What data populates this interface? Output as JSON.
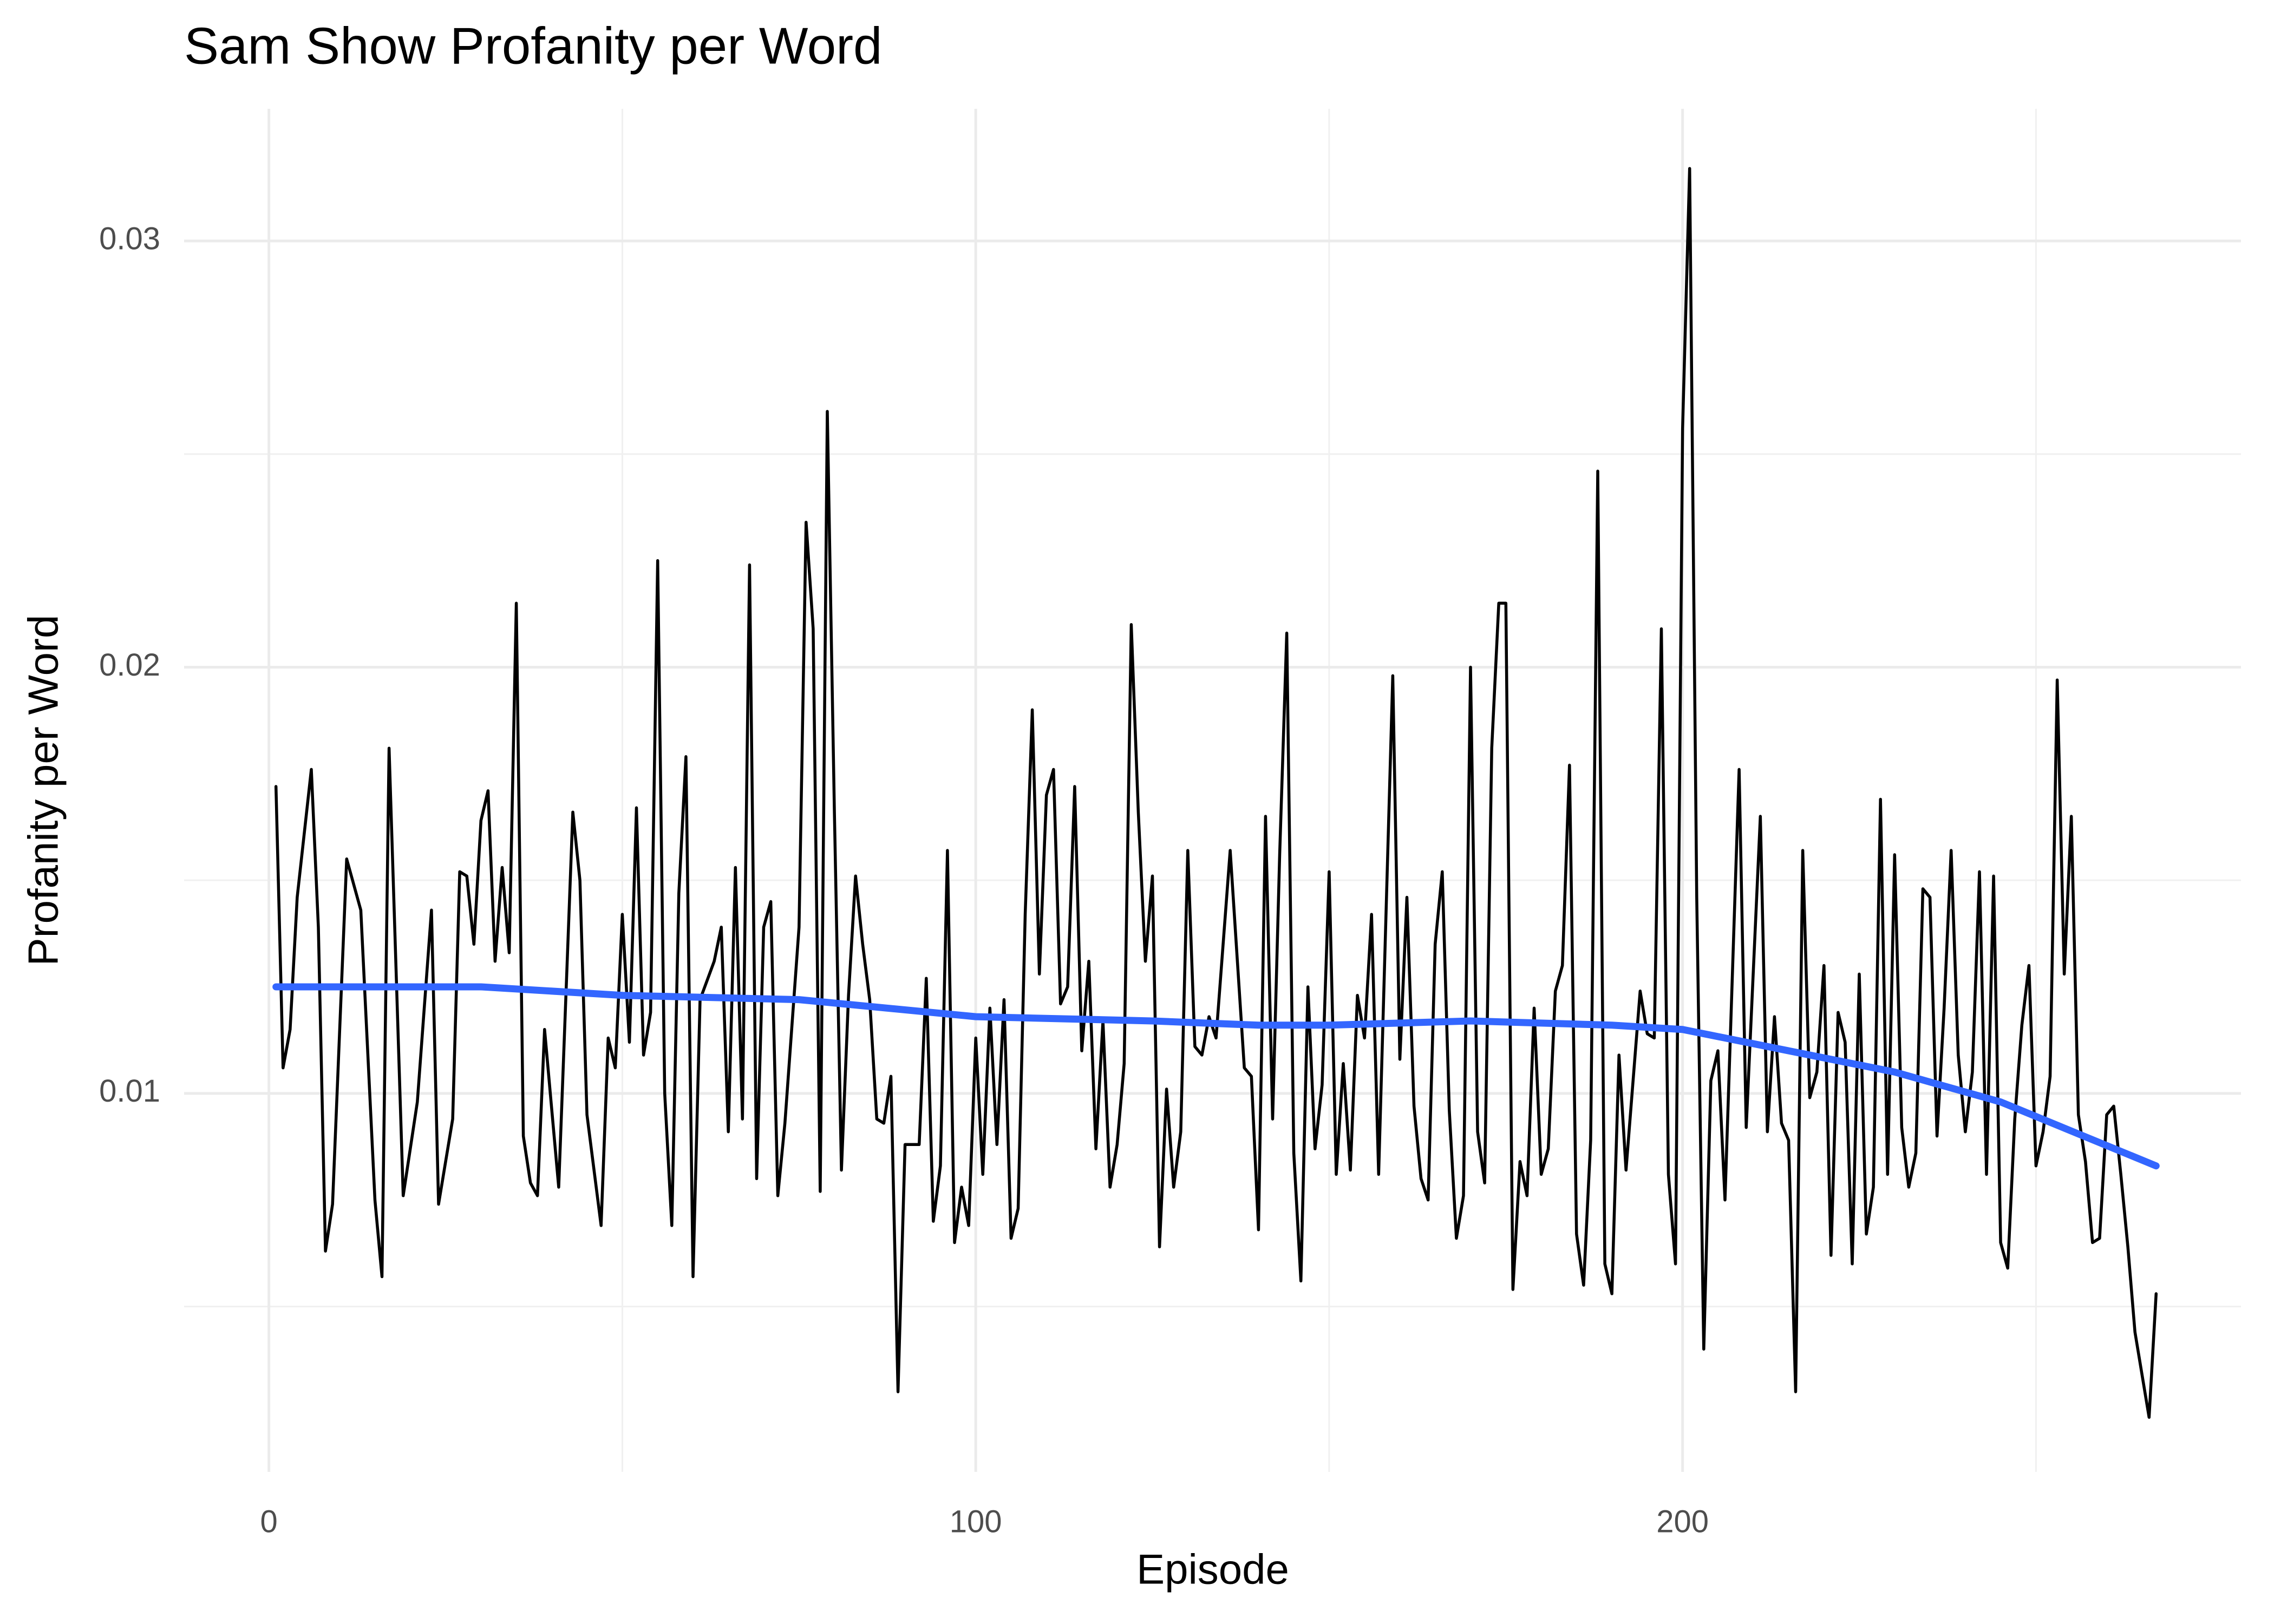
{
  "chart_data": {
    "type": "line",
    "title": "Sam Show Profanity per Word",
    "x_label": "Episode",
    "y_label": "Profanity per Word",
    "xlim": [
      -12,
      279
    ],
    "ylim": [
      0.00112,
      0.0331
    ],
    "xticks": [
      0,
      100,
      200
    ],
    "yticks": [
      0.01,
      0.02,
      0.03
    ],
    "xminor": [
      50,
      150,
      250
    ],
    "yminor": [
      0.005,
      0.015,
      0.025
    ],
    "grid": true,
    "series": [
      {
        "color": "#000000",
        "x": [
          1,
          2,
          3,
          4,
          6,
          7,
          8,
          9,
          11,
          13,
          15,
          16,
          17,
          19,
          21,
          23,
          24,
          26,
          27,
          28,
          29,
          30,
          31,
          32,
          33,
          34,
          35,
          36,
          37,
          38,
          39,
          41,
          43,
          44,
          45,
          47,
          48,
          49,
          50,
          51,
          52,
          53,
          54,
          55,
          56,
          57,
          58,
          59,
          60,
          61,
          63,
          64,
          65,
          66,
          67,
          68,
          69,
          70,
          71,
          72,
          73,
          75,
          76,
          77,
          78,
          79,
          80,
          81,
          82,
          83,
          84,
          85,
          86,
          87,
          88,
          89,
          90,
          92,
          93,
          94,
          95,
          96,
          97,
          98,
          99,
          100,
          101,
          102,
          103,
          104,
          105,
          106,
          107,
          108,
          109,
          110,
          111,
          112,
          113,
          114,
          115,
          116,
          117,
          118,
          119,
          120,
          121,
          122,
          123,
          124,
          125,
          126,
          127,
          128,
          129,
          130,
          131,
          132,
          133,
          134,
          136,
          138,
          139,
          140,
          141,
          142,
          143,
          144,
          145,
          146,
          147,
          148,
          149,
          150,
          151,
          152,
          153,
          154,
          155,
          156,
          157,
          159,
          160,
          161,
          162,
          163,
          164,
          165,
          166,
          167,
          168,
          169,
          170,
          171,
          172,
          173,
          174,
          175,
          176,
          177,
          178,
          179,
          180,
          181,
          182,
          183,
          184,
          185,
          186,
          187,
          188,
          189,
          190,
          191,
          192,
          194,
          195,
          196,
          197,
          198,
          199,
          200,
          201,
          202,
          203,
          204,
          205,
          206,
          208,
          209,
          211,
          212,
          213,
          214,
          215,
          216,
          217,
          218,
          219,
          220,
          221,
          222,
          223,
          224,
          225,
          226,
          227,
          228,
          229,
          230,
          231,
          232,
          233,
          234,
          235,
          236,
          237,
          238,
          239,
          240,
          241,
          242,
          243,
          244,
          245,
          246,
          247,
          248,
          249,
          250,
          251,
          252,
          253,
          254,
          255,
          256,
          257,
          258,
          259,
          260,
          261,
          262,
          263,
          264,
          266,
          267
        ],
        "values": [
          0.0172,
          0.0106,
          0.0115,
          0.0146,
          0.0176,
          0.0139,
          0.0063,
          0.0074,
          0.0155,
          0.0143,
          0.0075,
          0.0057,
          0.0181,
          0.0076,
          0.0098,
          0.0143,
          0.0074,
          0.0094,
          0.0152,
          0.0151,
          0.0135,
          0.0164,
          0.0171,
          0.0131,
          0.0153,
          0.0133,
          0.0215,
          0.009,
          0.0079,
          0.0076,
          0.0115,
          0.0078,
          0.0166,
          0.015,
          0.0095,
          0.0069,
          0.0113,
          0.0106,
          0.0142,
          0.0112,
          0.0167,
          0.0109,
          0.0119,
          0.0225,
          0.01,
          0.0069,
          0.0147,
          0.0179,
          0.0057,
          0.0122,
          0.0131,
          0.0139,
          0.0091,
          0.0153,
          0.0094,
          0.0224,
          0.008,
          0.0139,
          0.0145,
          0.0076,
          0.0093,
          0.0139,
          0.0234,
          0.0209,
          0.0077,
          0.026,
          0.0166,
          0.0082,
          0.0123,
          0.0151,
          0.0135,
          0.0122,
          0.0094,
          0.0093,
          0.0104,
          0.003,
          0.0088,
          0.0088,
          0.0127,
          0.007,
          0.0083,
          0.0157,
          0.0065,
          0.0078,
          0.0069,
          0.0113,
          0.0081,
          0.012,
          0.0088,
          0.0122,
          0.0066,
          0.0073,
          0.0142,
          0.019,
          0.0128,
          0.017,
          0.0176,
          0.0121,
          0.0125,
          0.0172,
          0.011,
          0.0131,
          0.0087,
          0.0117,
          0.0078,
          0.0088,
          0.0107,
          0.021,
          0.0166,
          0.0131,
          0.0151,
          0.0064,
          0.0101,
          0.0078,
          0.0091,
          0.0157,
          0.0111,
          0.0109,
          0.0118,
          0.0113,
          0.0157,
          0.0106,
          0.0104,
          0.0068,
          0.0165,
          0.0094,
          0.0156,
          0.0208,
          0.0086,
          0.0056,
          0.0125,
          0.0087,
          0.0102,
          0.0152,
          0.0081,
          0.0107,
          0.0082,
          0.0123,
          0.0113,
          0.0142,
          0.0081,
          0.0198,
          0.0108,
          0.0146,
          0.0097,
          0.008,
          0.0075,
          0.0135,
          0.0152,
          0.0096,
          0.0066,
          0.0076,
          0.02,
          0.0091,
          0.0079,
          0.0181,
          0.0215,
          0.0215,
          0.0054,
          0.0084,
          0.0076,
          0.012,
          0.0081,
          0.0087,
          0.0124,
          0.013,
          0.0177,
          0.0067,
          0.0055,
          0.0089,
          0.0246,
          0.006,
          0.0053,
          0.0109,
          0.0082,
          0.0124,
          0.0114,
          0.0113,
          0.0209,
          0.0081,
          0.006,
          0.0256,
          0.0317,
          0.0146,
          0.004,
          0.0103,
          0.011,
          0.0075,
          0.0176,
          0.0092,
          0.0165,
          0.0091,
          0.0118,
          0.0093,
          0.0089,
          0.003,
          0.0157,
          0.0099,
          0.0105,
          0.013,
          0.0062,
          0.0119,
          0.0112,
          0.006,
          0.0128,
          0.0067,
          0.0078,
          0.0169,
          0.0081,
          0.0156,
          0.0092,
          0.0078,
          0.0086,
          0.0148,
          0.0146,
          0.009,
          0.012,
          0.0157,
          0.0109,
          0.0091,
          0.0105,
          0.0152,
          0.0081,
          0.0151,
          0.0065,
          0.0059,
          0.0094,
          0.0116,
          0.013,
          0.0083,
          0.0091,
          0.0104,
          0.0197,
          0.0128,
          0.0165,
          0.0095,
          0.0084,
          0.0065,
          0.0066,
          0.0095,
          0.0097,
          0.0081,
          0.0064,
          0.0044,
          0.0024,
          0.0053
        ]
      },
      {
        "color": "#3366ff",
        "x": [
          1,
          30,
          50,
          75,
          100,
          125,
          140,
          150,
          170,
          190,
          200,
          215,
          230,
          245,
          267
        ],
        "values": [
          0.0125,
          0.0125,
          0.0123,
          0.0122,
          0.0118,
          0.0117,
          0.0116,
          0.0116,
          0.0117,
          0.0116,
          0.0115,
          0.011,
          0.0105,
          0.0098,
          0.0083
        ]
      }
    ]
  }
}
